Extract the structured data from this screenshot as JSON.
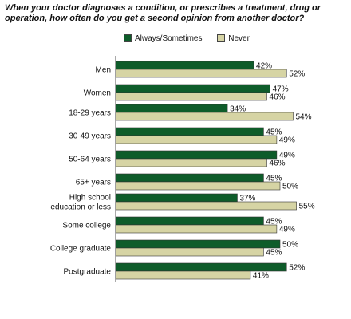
{
  "chart_data": {
    "type": "bar",
    "orientation": "horizontal",
    "title": "When your doctor diagnoses a condition, or prescribes a treatment, drug or operation, how often do you get a second opinion from another doctor?",
    "categories": [
      [
        "Men"
      ],
      [
        "Women"
      ],
      [
        "18-29 years"
      ],
      [
        "30-49 years"
      ],
      [
        "50-64 years"
      ],
      [
        "65+ years"
      ],
      [
        "High school",
        "education or less"
      ],
      [
        "Some college"
      ],
      [
        "College graduate"
      ],
      [
        "Postgraduate"
      ]
    ],
    "groups": [
      [
        0,
        1
      ],
      [
        2,
        3,
        4,
        5
      ],
      [
        6,
        7,
        8,
        9
      ]
    ],
    "series": [
      {
        "name": "Always/Sometimes",
        "color": "#0e5c2a",
        "values": [
          42,
          47,
          34,
          45,
          49,
          45,
          37,
          45,
          50,
          52
        ]
      },
      {
        "name": "Never",
        "color": "#d6d4a4",
        "values": [
          52,
          46,
          54,
          49,
          46,
          50,
          55,
          49,
          45,
          41
        ]
      }
    ],
    "value_suffix": "%",
    "xlim": [
      0,
      60
    ],
    "legend_position": "top"
  }
}
